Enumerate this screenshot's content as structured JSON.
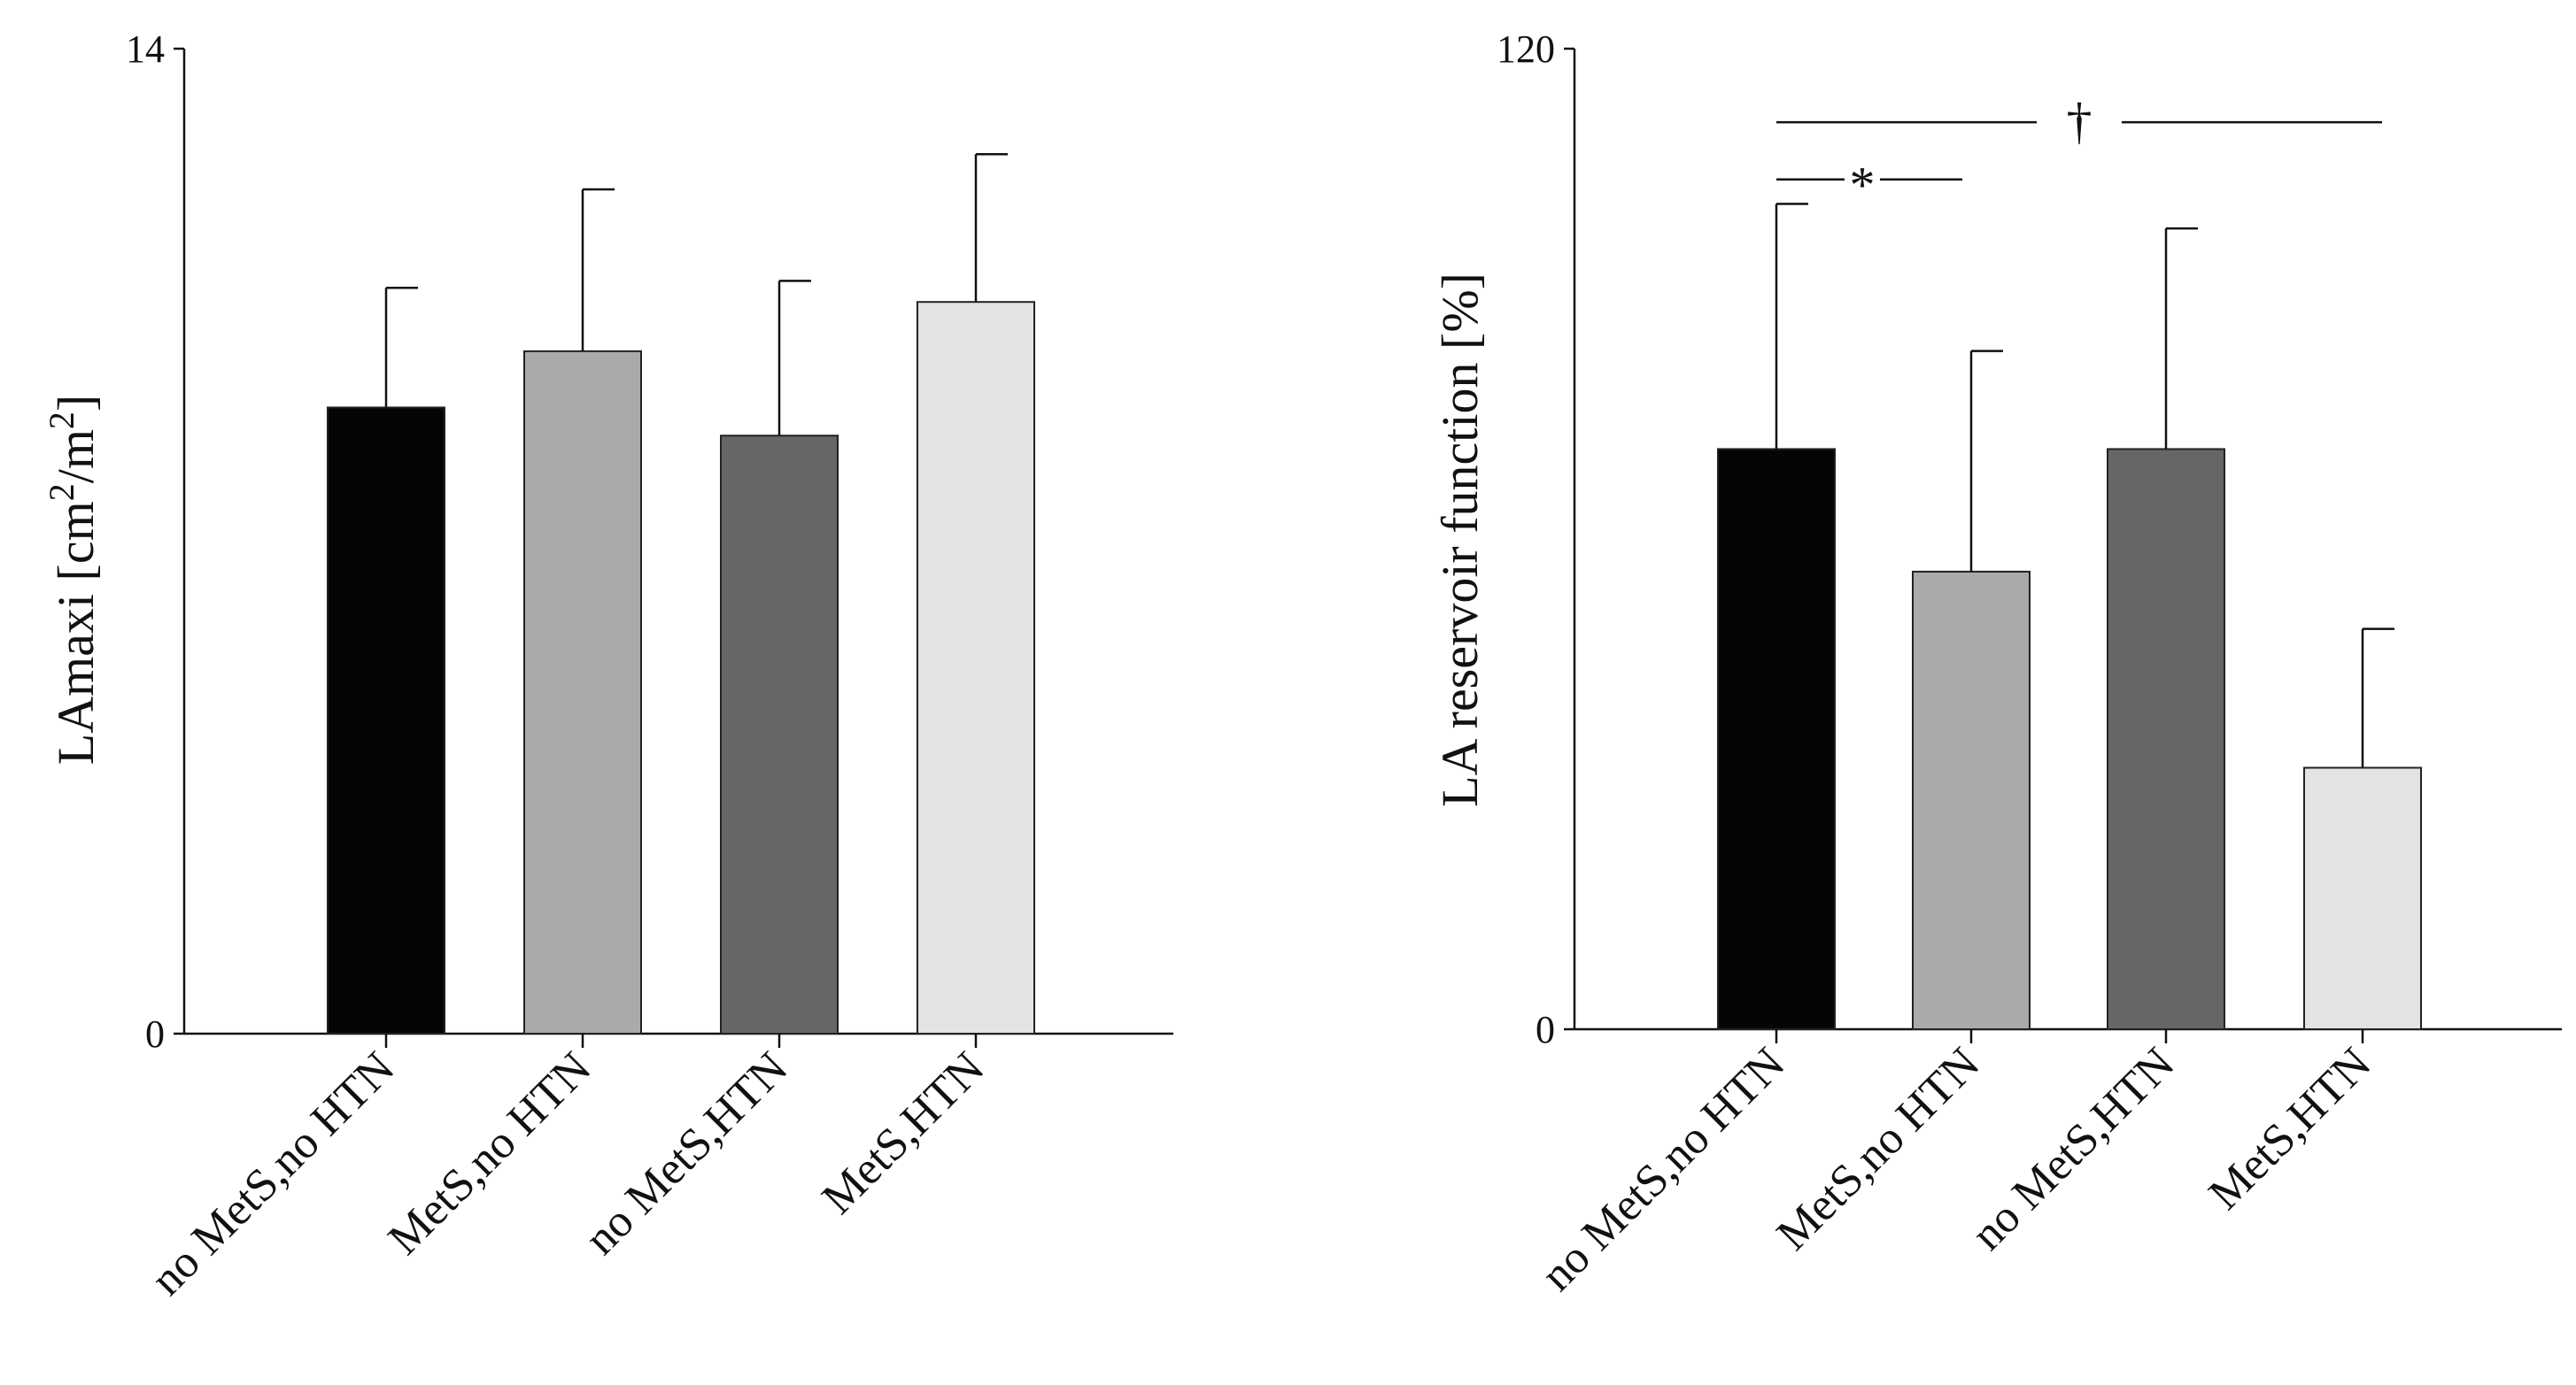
{
  "figure": {
    "panels": 2,
    "colors": {
      "axis": "#111111",
      "bar_outline": "#222222",
      "bar_fills": [
        "#050505",
        "#aaaaaa",
        "#666666",
        "#e3e3e3"
      ]
    }
  },
  "chart_data": [
    {
      "type": "bar",
      "title": "",
      "xlabel": "",
      "ylabel_prefix": "LAmaxi [cm",
      "ylabel_sup1": "2",
      "ylabel_mid": "/m",
      "ylabel_sup2": "2",
      "ylabel_suffix": "]",
      "ylim": [
        0,
        14
      ],
      "yticks": [
        0,
        14
      ],
      "ytick_labels": [
        "0",
        "14"
      ],
      "categories": [
        "no MetS,no HTN",
        "MetS,no HTN",
        "no MetS,HTN",
        "MetS,HTN"
      ],
      "values": [
        8.9,
        9.7,
        8.5,
        10.4
      ],
      "errors": [
        1.7,
        2.3,
        2.2,
        2.1
      ],
      "significance": []
    },
    {
      "type": "bar",
      "title": "",
      "xlabel": "",
      "ylabel": "LA reservoir function [%]",
      "ylim": [
        0,
        120
      ],
      "yticks": [
        0,
        120
      ],
      "ytick_labels": [
        "0",
        "120"
      ],
      "categories": [
        "no MetS,no HTN",
        "MetS,no HTN",
        "no MetS,HTN",
        "MetS,HTN"
      ],
      "values": [
        71,
        56,
        71,
        32
      ],
      "errors": [
        30,
        27,
        27,
        17
      ],
      "significance": [
        {
          "symbol": "*",
          "from": 0,
          "to": 1,
          "level": 104
        },
        {
          "symbol": "†",
          "from": 0,
          "to": 3,
          "level": 111
        }
      ]
    }
  ]
}
